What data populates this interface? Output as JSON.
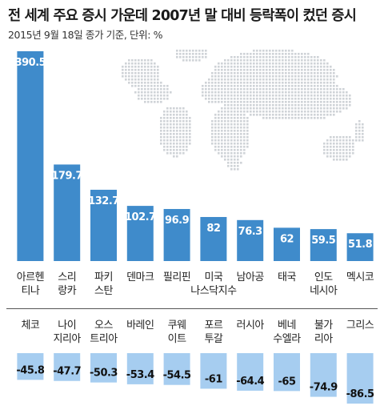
{
  "title": "전 세계 주요 증시 가운데 2007년 말 대비 등락폭이 컸던 증시",
  "subtitle": "2015년 9월 18일 종가 기준, 단위: %",
  "colors": {
    "gain_bar": "#3f8bcb",
    "loss_bar": "#a6cdf0",
    "map_dots": "#cfd3d7",
    "divider": "#555555"
  },
  "chart_data": [
    {
      "type": "bar",
      "name": "gainers",
      "categories": [
        [
          "아르헨",
          "티나"
        ],
        [
          "스리",
          "랑카"
        ],
        [
          "파키",
          "스탄"
        ],
        [
          "덴마크"
        ],
        [
          "필리핀"
        ],
        [
          "미국",
          "나스닥지수"
        ],
        [
          "남아공"
        ],
        [
          "태국"
        ],
        [
          "인도",
          "네시아"
        ],
        [
          "멕시코"
        ]
      ],
      "values": [
        390.5,
        179.7,
        132.7,
        102.7,
        96.9,
        82,
        76.3,
        62,
        59.5,
        51.8
      ],
      "labels": [
        "390.5",
        "179.7",
        "132.7",
        "102.7",
        "96.9",
        "82",
        "76.3",
        "62",
        "59.5",
        "51.8"
      ],
      "ylim": [
        0,
        390.5
      ],
      "grid": false
    },
    {
      "type": "bar",
      "name": "losers",
      "categories": [
        [
          "체코"
        ],
        [
          "나이",
          "지리아"
        ],
        [
          "오스",
          "트리아"
        ],
        [
          "바레인"
        ],
        [
          "쿠웨",
          "이트"
        ],
        [
          "포르",
          "투갈"
        ],
        [
          "러시아"
        ],
        [
          "베네",
          "수엘라"
        ],
        [
          "불가",
          "리아"
        ],
        [
          "그리스"
        ]
      ],
      "values": [
        -45.8,
        -47.7,
        -50.3,
        -53.4,
        -54.5,
        -61,
        -64.4,
        -65,
        -74.9,
        -86.5
      ],
      "labels": [
        "-45.8",
        "-47.7",
        "-50.3",
        "-53.4",
        "-54.5",
        "-61",
        "-64.4",
        "-65",
        "-74.9",
        "-86.5"
      ],
      "ylim": [
        -86.5,
        0
      ],
      "grid": false
    }
  ]
}
